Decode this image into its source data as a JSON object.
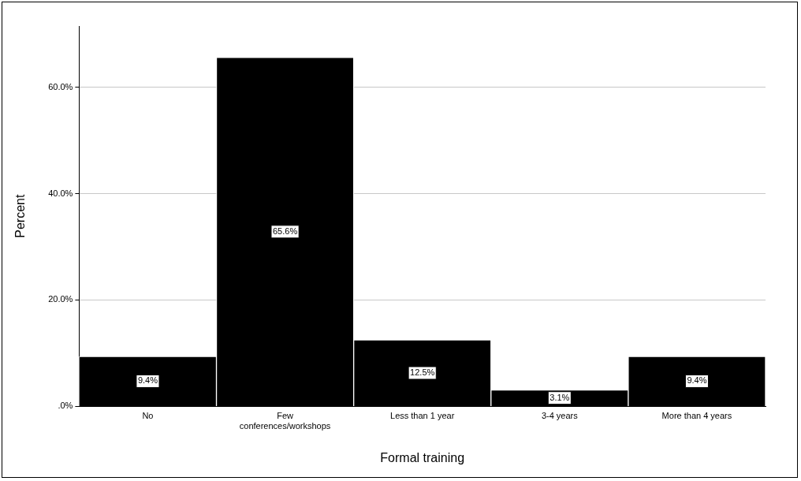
{
  "chart_data": {
    "type": "bar",
    "xlabel": "Formal training",
    "ylabel": "Percent",
    "categories": [
      "No",
      "Few conferences/workshops",
      "Less than 1 year",
      "3-4 years",
      "More than 4 years"
    ],
    "values": [
      9.4,
      65.6,
      12.5,
      3.1,
      9.4
    ],
    "value_labels": [
      "9.4%",
      "65.6%",
      "12.5%",
      "3.1%",
      "9.4%"
    ],
    "color": "#000000",
    "ylim": [
      0,
      71.5
    ],
    "yticks": [
      {
        "value": 0,
        "label": ".0%"
      },
      {
        "value": 20,
        "label": "20.0%"
      },
      {
        "value": 40,
        "label": "40.0%"
      },
      {
        "value": 60,
        "label": "60.0%"
      }
    ],
    "grid": "y",
    "legend": false
  }
}
